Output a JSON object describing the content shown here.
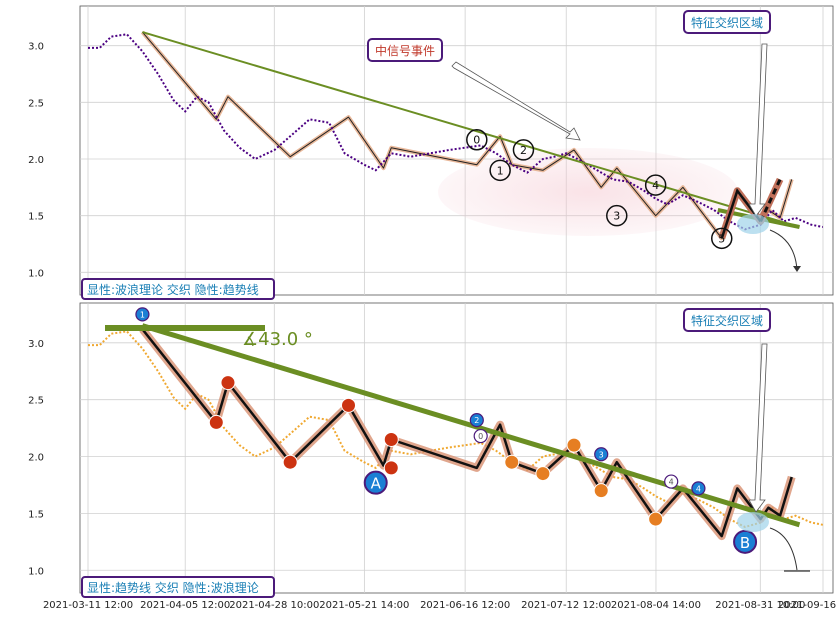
{
  "chart_data": [
    {
      "type": "line",
      "panel": "top",
      "y_ticks": [
        "1.0",
        "1.5",
        "2.0",
        "2.5",
        "3.0"
      ],
      "ylim": [
        0.8,
        3.35
      ],
      "grid": true,
      "legend_box": "显性:波浪理论 交织 隐性:趋势线",
      "annotations": {
        "event_label": "中信号事件",
        "zone_label": "特征交织区域",
        "wave_labels": [
          "0",
          "1",
          "2",
          "3",
          "4",
          "5"
        ]
      },
      "series": [
        {
          "kind": "price",
          "x": [
            "2021-03-11",
            "2021-03-14",
            "2021-03-17",
            "2021-03-21",
            "2021-03-25",
            "2021-03-29",
            "2021-04-02",
            "2021-04-05",
            "2021-04-08",
            "2021-04-11",
            "2021-04-15",
            "2021-04-19",
            "2021-04-23",
            "2021-04-28",
            "2021-05-02",
            "2021-05-07",
            "2021-05-12",
            "2021-05-16",
            "2021-05-21",
            "2021-05-24",
            "2021-05-28",
            "2021-06-02",
            "2021-06-07",
            "2021-06-12",
            "2021-06-16",
            "2021-06-20",
            "2021-06-24",
            "2021-06-28",
            "2021-07-02",
            "2021-07-06",
            "2021-07-09",
            "2021-07-12",
            "2021-07-16",
            "2021-07-20",
            "2021-07-24",
            "2021-07-28",
            "2021-08-01",
            "2021-08-04",
            "2021-08-07",
            "2021-08-11",
            "2021-08-15",
            "2021-08-19",
            "2021-08-23",
            "2021-08-27",
            "2021-08-31",
            "2021-09-03",
            "2021-09-06",
            "2021-09-09",
            "2021-09-13",
            "2021-09-16"
          ],
          "y": [
            2.98,
            2.98,
            3.08,
            3.1,
            2.95,
            2.75,
            2.52,
            2.42,
            2.55,
            2.5,
            2.25,
            2.1,
            2.0,
            2.08,
            2.2,
            2.35,
            2.32,
            2.05,
            1.95,
            1.9,
            2.05,
            2.02,
            2.05,
            2.08,
            2.1,
            2.12,
            2.05,
            1.95,
            1.88,
            2.0,
            2.02,
            2.05,
            1.98,
            1.9,
            1.82,
            1.8,
            1.72,
            1.65,
            1.6,
            1.68,
            1.62,
            1.55,
            1.45,
            1.38,
            1.42,
            1.55,
            1.45,
            1.48,
            1.42,
            1.4
          ]
        },
        {
          "kind": "wave_zigzag",
          "x": [
            "2021-03-25",
            "2021-04-13",
            "2021-04-16",
            "2021-05-02",
            "2021-05-17",
            "2021-05-26",
            "2021-05-28",
            "2021-06-19",
            "2021-06-25",
            "2021-06-28",
            "2021-07-06",
            "2021-07-14",
            "2021-07-21",
            "2021-07-25",
            "2021-08-04",
            "2021-08-11",
            "2021-08-21",
            "2021-08-25",
            "2021-08-31",
            "2021-09-02",
            "2021-09-05",
            "2021-09-08"
          ],
          "y": [
            3.12,
            2.35,
            2.55,
            2.02,
            2.37,
            1.92,
            2.1,
            1.95,
            2.2,
            1.95,
            1.9,
            2.08,
            1.75,
            1.92,
            1.5,
            1.75,
            1.3,
            1.72,
            1.45,
            1.55,
            1.48,
            1.82
          ]
        },
        {
          "kind": "trendline",
          "x": [
            "2021-03-25",
            "2021-09-10"
          ],
          "y": [
            3.12,
            1.4
          ]
        }
      ]
    },
    {
      "type": "line",
      "panel": "bottom",
      "y_ticks": [
        "1.0",
        "1.5",
        "2.0",
        "2.5",
        "3.0"
      ],
      "x_ticks": [
        "2021-03-11 12:00",
        "2021-04-05 12:00",
        "2021-04-28 10:00",
        "2021-05-21 14:00",
        "2021-06-16 12:00",
        "2021-07-12 12:00",
        "2021-08-04 14:00",
        "2021-08-31 10:00",
        "2021-09-16 13:00"
      ],
      "ylim": [
        0.8,
        3.35
      ],
      "grid": true,
      "legend_box": "显性:趋势线 交织 隐性:波浪理论",
      "annotations": {
        "zone_label": "特征交织区域",
        "angle_label": "∡43.0 °",
        "point_labels": [
          "A",
          "B"
        ],
        "wave_labels": [
          "1",
          "2",
          "3",
          "4",
          "0",
          "4"
        ]
      },
      "series": [
        {
          "kind": "price",
          "x": [
            "2021-03-11",
            "2021-03-14",
            "2021-03-17",
            "2021-03-21",
            "2021-03-25",
            "2021-03-29",
            "2021-04-02",
            "2021-04-05",
            "2021-04-08",
            "2021-04-11",
            "2021-04-15",
            "2021-04-19",
            "2021-04-23",
            "2021-04-28",
            "2021-05-02",
            "2021-05-07",
            "2021-05-12",
            "2021-05-16",
            "2021-05-21",
            "2021-05-24",
            "2021-05-28",
            "2021-06-02",
            "2021-06-07",
            "2021-06-12",
            "2021-06-16",
            "2021-06-20",
            "2021-06-24",
            "2021-06-28",
            "2021-07-02",
            "2021-07-06",
            "2021-07-09",
            "2021-07-12",
            "2021-07-16",
            "2021-07-20",
            "2021-07-24",
            "2021-07-28",
            "2021-08-01",
            "2021-08-04",
            "2021-08-07",
            "2021-08-11",
            "2021-08-15",
            "2021-08-19",
            "2021-08-23",
            "2021-08-27",
            "2021-08-31",
            "2021-09-03",
            "2021-09-06",
            "2021-09-09",
            "2021-09-13",
            "2021-09-16"
          ],
          "y": [
            2.98,
            2.98,
            3.08,
            3.1,
            2.95,
            2.75,
            2.52,
            2.42,
            2.55,
            2.5,
            2.25,
            2.1,
            2.0,
            2.08,
            2.2,
            2.35,
            2.32,
            2.05,
            1.95,
            1.9,
            2.05,
            2.02,
            2.05,
            2.08,
            2.1,
            2.12,
            2.05,
            1.95,
            1.88,
            2.0,
            2.02,
            2.05,
            1.98,
            1.9,
            1.82,
            1.8,
            1.72,
            1.65,
            1.6,
            1.68,
            1.62,
            1.55,
            1.45,
            1.38,
            1.42,
            1.55,
            1.45,
            1.48,
            1.42,
            1.4
          ]
        },
        {
          "kind": "wave_zigzag",
          "x": [
            "2021-03-25",
            "2021-04-13",
            "2021-04-16",
            "2021-05-02",
            "2021-05-17",
            "2021-05-26",
            "2021-05-28",
            "2021-06-19",
            "2021-06-25",
            "2021-06-28",
            "2021-07-06",
            "2021-07-14",
            "2021-07-21",
            "2021-07-25",
            "2021-08-04",
            "2021-08-11",
            "2021-08-21",
            "2021-08-25",
            "2021-08-31",
            "2021-09-02",
            "2021-09-05",
            "2021-09-08"
          ],
          "y": [
            3.12,
            2.3,
            2.65,
            1.95,
            2.45,
            1.92,
            2.15,
            1.9,
            2.28,
            1.95,
            1.85,
            2.1,
            1.7,
            1.95,
            1.45,
            1.72,
            1.3,
            1.72,
            1.45,
            1.55,
            1.48,
            1.82
          ]
        },
        {
          "kind": "trendline",
          "x": [
            "2021-03-25",
            "2021-09-10"
          ],
          "y": [
            3.15,
            1.4
          ]
        }
      ]
    }
  ]
}
